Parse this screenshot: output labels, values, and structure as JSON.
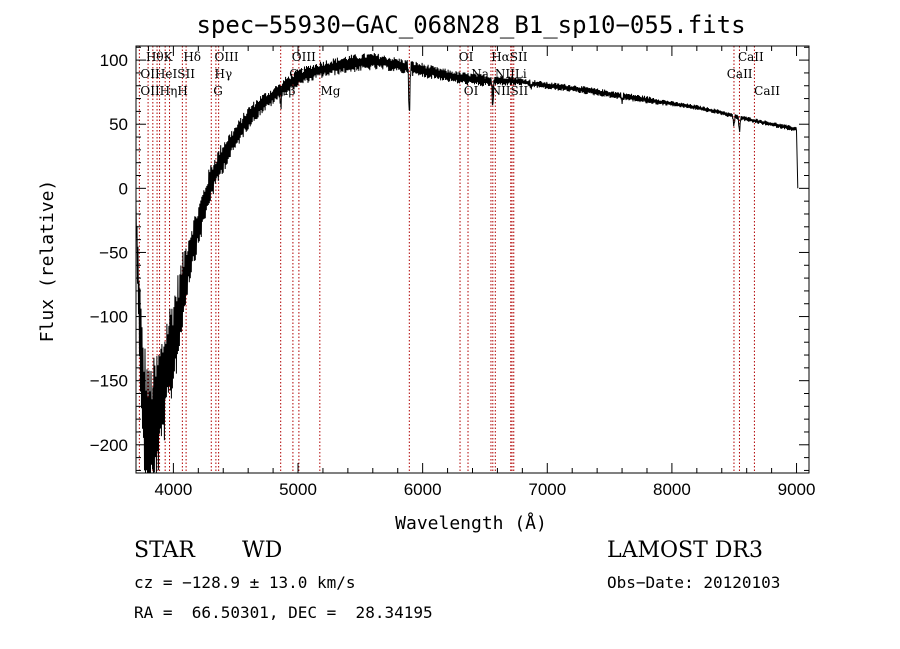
{
  "chart_data": {
    "type": "line",
    "title": "spec−55930−GAC_068N28_B1_sp10−055.fits",
    "xlabel": "Wavelength (Å)",
    "ylabel": "Flux (relative)",
    "xlim": [
      3700,
      9100
    ],
    "ylim": [
      -222,
      111
    ],
    "x_ticks": [
      4000,
      5000,
      6000,
      7000,
      8000,
      9000
    ],
    "x_tick_labels": [
      "4000",
      "5000",
      "6000",
      "7000",
      "8000",
      "9000"
    ],
    "y_ticks": [
      -200,
      -150,
      -100,
      -50,
      0,
      50,
      100
    ],
    "y_tick_labels": [
      "−200",
      "−150",
      "−100",
      "−50",
      "0",
      "50",
      "100"
    ],
    "series": [
      {
        "name": "spectrum",
        "x": [
          3700,
          3750,
          3800,
          3850,
          3900,
          3950,
          4000,
          4050,
          4100,
          4150,
          4200,
          4300,
          4400,
          4500,
          4600,
          4700,
          4800,
          4900,
          5000,
          5100,
          5200,
          5300,
          5400,
          5500,
          5600,
          5700,
          5800,
          5900,
          6000,
          6100,
          6200,
          6300,
          6400,
          6500,
          6600,
          6700,
          6800,
          7000,
          7200,
          7400,
          7600,
          7800,
          8000,
          8200,
          8400,
          8500,
          8600,
          8700,
          8800,
          8900,
          9000,
          9010
        ],
        "y": [
          -20,
          -160,
          -195,
          -185,
          -165,
          -140,
          -120,
          -95,
          -65,
          -45,
          -30,
          5,
          25,
          40,
          55,
          65,
          72,
          80,
          86,
          90,
          93,
          95,
          97,
          98,
          99,
          98,
          96,
          94,
          92,
          90,
          88,
          86,
          85,
          84,
          84,
          84,
          83,
          80,
          78,
          75,
          72,
          69,
          66,
          63,
          59,
          56,
          54,
          52,
          50,
          48,
          46,
          0
        ],
        "noise": [
          10,
          55,
          55,
          55,
          50,
          45,
          40,
          35,
          25,
          20,
          18,
          15,
          13,
          10,
          9,
          8,
          7,
          7,
          7,
          7,
          7,
          7,
          7,
          7,
          7,
          6,
          6,
          6,
          6,
          5,
          5,
          5,
          5,
          5,
          4,
          4,
          3,
          3,
          3,
          3,
          3,
          3,
          2,
          2,
          2,
          2,
          2,
          2,
          2,
          2,
          2,
          0
        ]
      }
    ],
    "absorption_features": [
      {
        "x": 5893,
        "depth": 40
      },
      {
        "x": 6563,
        "depth": 22
      },
      {
        "x": 4861,
        "depth": 12
      },
      {
        "x": 8542,
        "depth": 12
      },
      {
        "x": 8498,
        "depth": 8
      },
      {
        "x": 7600,
        "depth": 4
      },
      {
        "x": 6870,
        "depth": 4
      }
    ],
    "line_markers": [
      {
        "x": 3727,
        "labels": [
          "OII"
        ]
      },
      {
        "x": 3797,
        "labels": [
          "Hθ"
        ]
      },
      {
        "x": 3835,
        "labels": [
          "Hη"
        ]
      },
      {
        "x": 3869,
        "labels": [
          "NeIII"
        ]
      },
      {
        "x": 3889,
        "labels": [
          "HeI"
        ]
      },
      {
        "x": 3934,
        "labels": [
          "K"
        ]
      },
      {
        "x": 3969,
        "labels": [
          "H"
        ]
      },
      {
        "x": 4072,
        "labels": [
          "SII"
        ]
      },
      {
        "x": 4102,
        "labels": [
          "Hδ"
        ]
      },
      {
        "x": 4304,
        "labels": [
          "G"
        ]
      },
      {
        "x": 4341,
        "labels": [
          "Hγ"
        ]
      },
      {
        "x": 4363,
        "labels": [
          "OIII"
        ]
      },
      {
        "x": 4861,
        "labels": [
          "Hβ"
        ]
      },
      {
        "x": 4959,
        "labels": [
          "OIII"
        ]
      },
      {
        "x": 5007,
        "labels": [
          "OIII"
        ]
      },
      {
        "x": 5175,
        "labels": [
          "Mg"
        ]
      },
      {
        "x": 5893,
        "labels": [
          "Na"
        ]
      },
      {
        "x": 6300,
        "labels": [
          "OI"
        ]
      },
      {
        "x": 6364,
        "labels": [
          "OI"
        ]
      },
      {
        "x": 6548,
        "labels": [
          "NII"
        ]
      },
      {
        "x": 6563,
        "labels": [
          "Hα"
        ]
      },
      {
        "x": 6583,
        "labels": [
          "NII"
        ]
      },
      {
        "x": 6707,
        "labels": [
          "Li"
        ]
      },
      {
        "x": 6717,
        "labels": [
          "SII"
        ]
      },
      {
        "x": 6731,
        "labels": [
          "SII"
        ]
      },
      {
        "x": 8498,
        "labels": [
          "CaII"
        ]
      },
      {
        "x": 8542,
        "labels": [
          "CaII"
        ]
      },
      {
        "x": 8662,
        "labels": [
          "CaII"
        ]
      }
    ],
    "label_texts": [
      {
        "text": "HθK",
        "x": 3780,
        "row": 0
      },
      {
        "text": "Hδ",
        "x": 4080,
        "row": 0
      },
      {
        "text": "OIII",
        "x": 4330,
        "row": 0
      },
      {
        "text": "OIII",
        "x": 4950,
        "row": 0
      },
      {
        "text": "OI",
        "x": 6290,
        "row": 0
      },
      {
        "text": "HαSII",
        "x": 6550,
        "row": 0
      },
      {
        "text": "CaII",
        "x": 8530,
        "row": 0
      },
      {
        "text": "OIHeISII",
        "x": 3735,
        "row": 1
      },
      {
        "text": "Hγ",
        "x": 4330,
        "row": 1
      },
      {
        "text": "OIII",
        "x": 4930,
        "row": 1
      },
      {
        "text": "Na",
        "x": 6390,
        "row": 1
      },
      {
        "text": "NIILi",
        "x": 6580,
        "row": 1
      },
      {
        "text": "CaII",
        "x": 8440,
        "row": 1
      },
      {
        "text": "OIIHηH",
        "x": 3735,
        "row": 2
      },
      {
        "text": "G",
        "x": 4320,
        "row": 2
      },
      {
        "text": "Hβ",
        "x": 4840,
        "row": 2
      },
      {
        "text": "Mg",
        "x": 5180,
        "row": 2
      },
      {
        "text": "OI",
        "x": 6330,
        "row": 2
      },
      {
        "text": "NIISII",
        "x": 6545,
        "row": 2
      },
      {
        "text": "CaII",
        "x": 8660,
        "row": 2
      }
    ]
  },
  "info": {
    "class_label": "STAR",
    "subclass_label": "WD",
    "survey": "LAMOST DR3",
    "velocity": "cz = −128.9 ± 13.0 km/s",
    "obs_date": "Obs−Date: 20120103",
    "coordinates": "RA =  66.50301, DEC =  28.34195"
  },
  "colors": {
    "spectrum": "#000000",
    "marker": "#b00000",
    "axis": "#000000"
  }
}
